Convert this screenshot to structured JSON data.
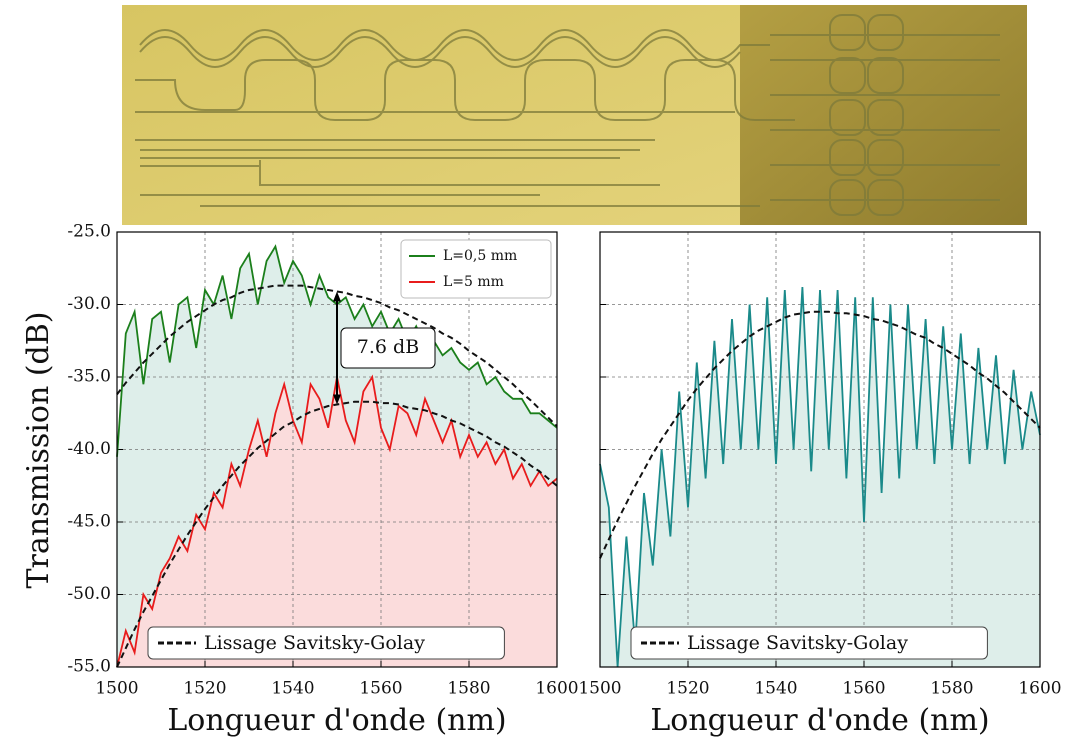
{
  "chart_data": [
    {
      "type": "line",
      "ylabel": "Transmission (dB)",
      "xlabel": "Longueur d'onde (nm)",
      "xlim": [
        1500,
        1600
      ],
      "ylim": [
        -55,
        -25
      ],
      "xticks": [
        1500,
        1520,
        1540,
        1560,
        1580,
        1600
      ],
      "yticks": [
        {
          "value": -55,
          "label": "-55.0"
        },
        {
          "value": -50,
          "label": "-50.0"
        },
        {
          "value": -45,
          "label": "-45.0"
        },
        {
          "value": -40,
          "label": "-40.0"
        },
        {
          "value": -35,
          "label": "-35.0"
        },
        {
          "value": -30,
          "label": "-30.0"
        },
        {
          "value": -25,
          "label": "-25.0"
        }
      ],
      "ytick_labels": true,
      "grid": true,
      "annotation": "7.6 dB",
      "x": [
        1500,
        1502,
        1504,
        1506,
        1508,
        1510,
        1512,
        1514,
        1516,
        1518,
        1520,
        1522,
        1524,
        1526,
        1528,
        1530,
        1532,
        1534,
        1536,
        1538,
        1540,
        1542,
        1544,
        1546,
        1548,
        1550,
        1552,
        1554,
        1556,
        1558,
        1560,
        1562,
        1564,
        1566,
        1568,
        1570,
        1572,
        1574,
        1576,
        1578,
        1580,
        1582,
        1584,
        1586,
        1588,
        1590,
        1592,
        1594,
        1596,
        1598,
        1600
      ],
      "series": [
        {
          "name": "L=0,5 mm",
          "color": "#1b7f1b",
          "fill": "#deeeea",
          "legend": "upper right",
          "values": [
            -40.5,
            -32,
            -30.5,
            -35.5,
            -31,
            -30.5,
            -34,
            -30,
            -29.5,
            -33,
            -29,
            -30,
            -28,
            -31,
            -27.5,
            -26.5,
            -30,
            -27,
            -26,
            -28.5,
            -27,
            -28,
            -30,
            -28,
            -29.5,
            -30,
            -29.5,
            -31,
            -30,
            -31.5,
            -30.5,
            -32,
            -31,
            -32.5,
            -31.5,
            -33,
            -32.5,
            -33.5,
            -33,
            -34,
            -34.5,
            -34,
            -35.5,
            -35,
            -36,
            -36.5,
            -36.5,
            -37.5,
            -37.5,
            -38,
            -38.5
          ]
        },
        {
          "name": "L=5 mm",
          "color": "#e81c1c",
          "fill": "#fbdcdc",
          "legend": "upper right",
          "values": [
            -55,
            -52.5,
            -54,
            -50,
            -51,
            -48.5,
            -47.5,
            -46,
            -47,
            -44.5,
            -45.5,
            -43,
            -44,
            -41,
            -42.5,
            -40,
            -38,
            -40.5,
            -37.5,
            -35.5,
            -38,
            -39.5,
            -35.5,
            -36.5,
            -38.5,
            -35,
            -38,
            -39.5,
            -36,
            -35,
            -38.5,
            -40,
            -37,
            -37.5,
            -39,
            -36.5,
            -38,
            -39.5,
            -38,
            -40.5,
            -39,
            -40.5,
            -39.5,
            -41,
            -40,
            -42,
            -41,
            -42.5,
            -41.5,
            -42.5,
            -42
          ]
        },
        {
          "name": "Lissage Savitsky-Golay",
          "color": "#111111",
          "linestyle": "dashed",
          "legend": "lower left",
          "values": [
            -36.2,
            -35.4,
            -34.7,
            -34.0,
            -33.4,
            -32.8,
            -32.2,
            -31.7,
            -31.2,
            -30.8,
            -30.4,
            -30.0,
            -29.7,
            -29.5,
            -29.2,
            -29.0,
            -28.9,
            -28.8,
            -28.7,
            -28.7,
            -28.7,
            -28.7,
            -28.8,
            -28.9,
            -29.0,
            -29.1,
            -29.2,
            -29.4,
            -29.5,
            -29.7,
            -29.9,
            -30.2,
            -30.4,
            -30.7,
            -31.0,
            -31.3,
            -31.6,
            -32.0,
            -32.3,
            -32.7,
            -33.2,
            -33.6,
            -34.0,
            -34.5,
            -35.0,
            -35.5,
            -36.1,
            -36.6,
            -37.2,
            -37.8,
            -38.4
          ]
        },
        {
          "color": "#111111",
          "linestyle": "dashed",
          "values": [
            -55.0,
            -53.7,
            -52.4,
            -51.2,
            -50.1,
            -49.0,
            -47.9,
            -46.9,
            -45.9,
            -45.0,
            -44.1,
            -43.3,
            -42.5,
            -41.8,
            -41.1,
            -40.5,
            -39.9,
            -39.4,
            -38.9,
            -38.4,
            -38.1,
            -37.7,
            -37.4,
            -37.2,
            -37.0,
            -36.9,
            -36.8,
            -36.7,
            -36.7,
            -36.7,
            -36.8,
            -36.8,
            -36.9,
            -37.1,
            -37.2,
            -37.3,
            -37.5,
            -37.7,
            -38.0,
            -38.2,
            -38.5,
            -38.8,
            -39.1,
            -39.5,
            -39.8,
            -40.2,
            -40.6,
            -41.1,
            -41.5,
            -42.0,
            -42.5
          ]
        }
      ]
    },
    {
      "type": "line",
      "xlabel": "Longueur d'onde (nm)",
      "xlim": [
        1500,
        1600
      ],
      "ylim": [
        -55,
        -25
      ],
      "xticks": [
        1500,
        1520,
        1540,
        1560,
        1580,
        1600
      ],
      "yticks": [
        -55,
        -50,
        -45,
        -40,
        -35,
        -30,
        -25
      ],
      "ytick_labels": false,
      "grid": true,
      "x": [
        1500,
        1502,
        1504,
        1506,
        1508,
        1510,
        1512,
        1514,
        1516,
        1518,
        1520,
        1522,
        1524,
        1526,
        1528,
        1530,
        1532,
        1534,
        1536,
        1538,
        1540,
        1542,
        1544,
        1546,
        1548,
        1550,
        1552,
        1554,
        1556,
        1558,
        1560,
        1562,
        1564,
        1566,
        1568,
        1570,
        1572,
        1574,
        1576,
        1578,
        1580,
        1582,
        1584,
        1586,
        1588,
        1590,
        1592,
        1594,
        1596,
        1598,
        1600
      ],
      "series": [
        {
          "color": "#1a8a8a",
          "fill": "#deeeea",
          "values": [
            -41,
            -44,
            -55,
            -46,
            -53.5,
            -43,
            -48,
            -40,
            -46,
            -36,
            -44,
            -34,
            -42,
            -32.5,
            -41,
            -31,
            -40,
            -30,
            -40,
            -29.5,
            -41,
            -29,
            -40,
            -28.8,
            -41.5,
            -29,
            -40,
            -29,
            -42,
            -29.5,
            -45,
            -29.5,
            -43,
            -30,
            -42,
            -30,
            -40,
            -31,
            -41,
            -31.5,
            -40,
            -32,
            -41,
            -33,
            -40,
            -33.5,
            -41,
            -34.5,
            -40,
            -36,
            -39
          ]
        },
        {
          "name": "Lissage Savitsky-Golay",
          "color": "#111111",
          "linestyle": "dashed",
          "legend": "lower left",
          "values": [
            -47.5,
            -46.2,
            -44.9,
            -43.7,
            -42.5,
            -41.4,
            -40.3,
            -39.3,
            -38.4,
            -37.5,
            -36.6,
            -35.8,
            -35.1,
            -34.4,
            -33.8,
            -33.2,
            -32.7,
            -32.2,
            -31.8,
            -31.5,
            -31.2,
            -30.9,
            -30.7,
            -30.6,
            -30.5,
            -30.5,
            -30.5,
            -30.6,
            -30.6,
            -30.7,
            -30.8,
            -31.0,
            -31.1,
            -31.3,
            -31.5,
            -31.8,
            -32.1,
            -32.3,
            -32.7,
            -33.0,
            -33.4,
            -33.8,
            -34.2,
            -34.7,
            -35.1,
            -35.6,
            -36.1,
            -36.7,
            -37.3,
            -37.9,
            -38.5
          ]
        }
      ]
    }
  ]
}
